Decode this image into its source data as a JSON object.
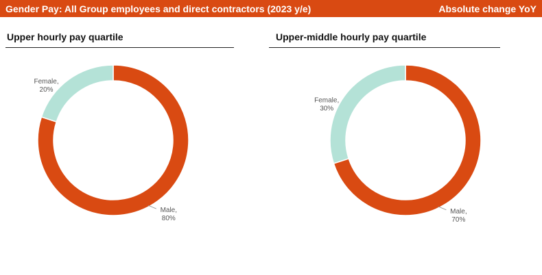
{
  "header": {
    "title": "Gender Pay: All Group employees and direct contractors (2023 y/e)",
    "right_label": "Absolute change YoY"
  },
  "colors": {
    "banner": "#d94a12",
    "male": "#d94a12",
    "female": "#b4e2d7"
  },
  "chart_data": [
    {
      "type": "pie",
      "title": "Upper hourly pay quartile",
      "slices": [
        {
          "label": "Male",
          "value": 80,
          "display": "80%"
        },
        {
          "label": "Female",
          "value": 20,
          "display": "20%"
        }
      ]
    },
    {
      "type": "pie",
      "title": "Upper-middle hourly pay quartile",
      "slices": [
        {
          "label": "Male",
          "value": 70,
          "display": "70%"
        },
        {
          "label": "Female",
          "value": 30,
          "display": "30%"
        }
      ]
    }
  ]
}
